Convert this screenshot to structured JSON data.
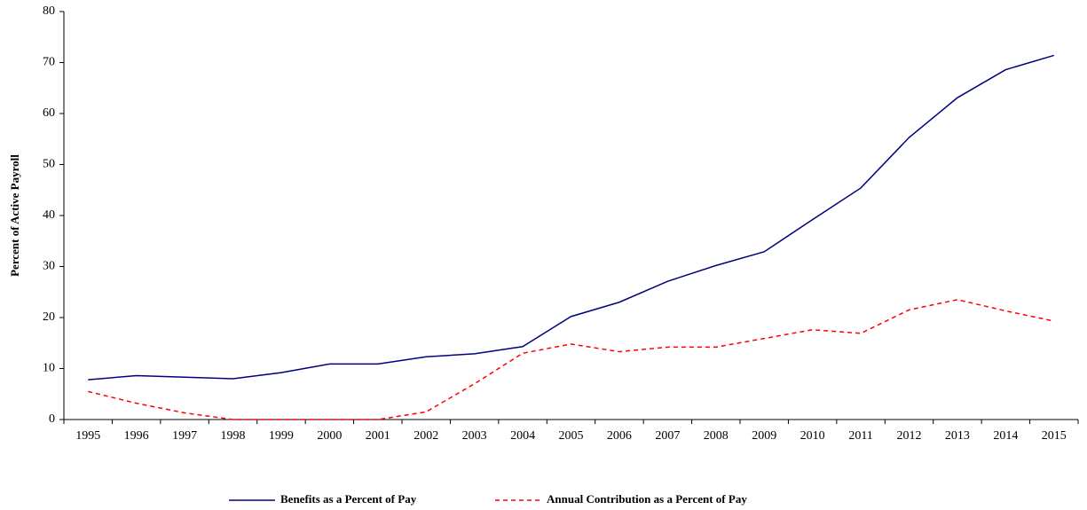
{
  "chart_data": {
    "type": "line",
    "y_label": "Percent of Active Payroll",
    "categories": [
      "1995",
      "1996",
      "1997",
      "1998",
      "1999",
      "2000",
      "2001",
      "2002",
      "2003",
      "2004",
      "2005",
      "2006",
      "2007",
      "2008",
      "2009",
      "2010",
      "2011",
      "2012",
      "2013",
      "2014",
      "2015"
    ],
    "series": [
      {
        "name": "Benefits as a Percent of Pay",
        "color": "#000080",
        "dash": "solid",
        "values": [
          7.8,
          8.6,
          8.3,
          8.0,
          9.2,
          10.9,
          10.9,
          12.3,
          12.9,
          14.3,
          20.2,
          23.0,
          27.1,
          30.2,
          32.9,
          39.2,
          45.4,
          55.3,
          63.1,
          68.6,
          71.4
        ]
      },
      {
        "name": "Annual Contribution as a Percent of Pay",
        "color": "#ff0000",
        "dash": "dashed",
        "values": [
          5.5,
          3.2,
          1.3,
          0,
          0,
          0,
          0,
          1.5,
          7.0,
          13.0,
          14.8,
          13.3,
          14.2,
          14.2,
          15.9,
          17.6,
          16.9,
          21.5,
          23.5,
          21.3,
          19.3
        ]
      }
    ],
    "ylim": [
      0,
      80
    ],
    "yticks": [
      0,
      10,
      20,
      30,
      40,
      50,
      60,
      70,
      80
    ],
    "grid": false,
    "legend": "bottom"
  }
}
